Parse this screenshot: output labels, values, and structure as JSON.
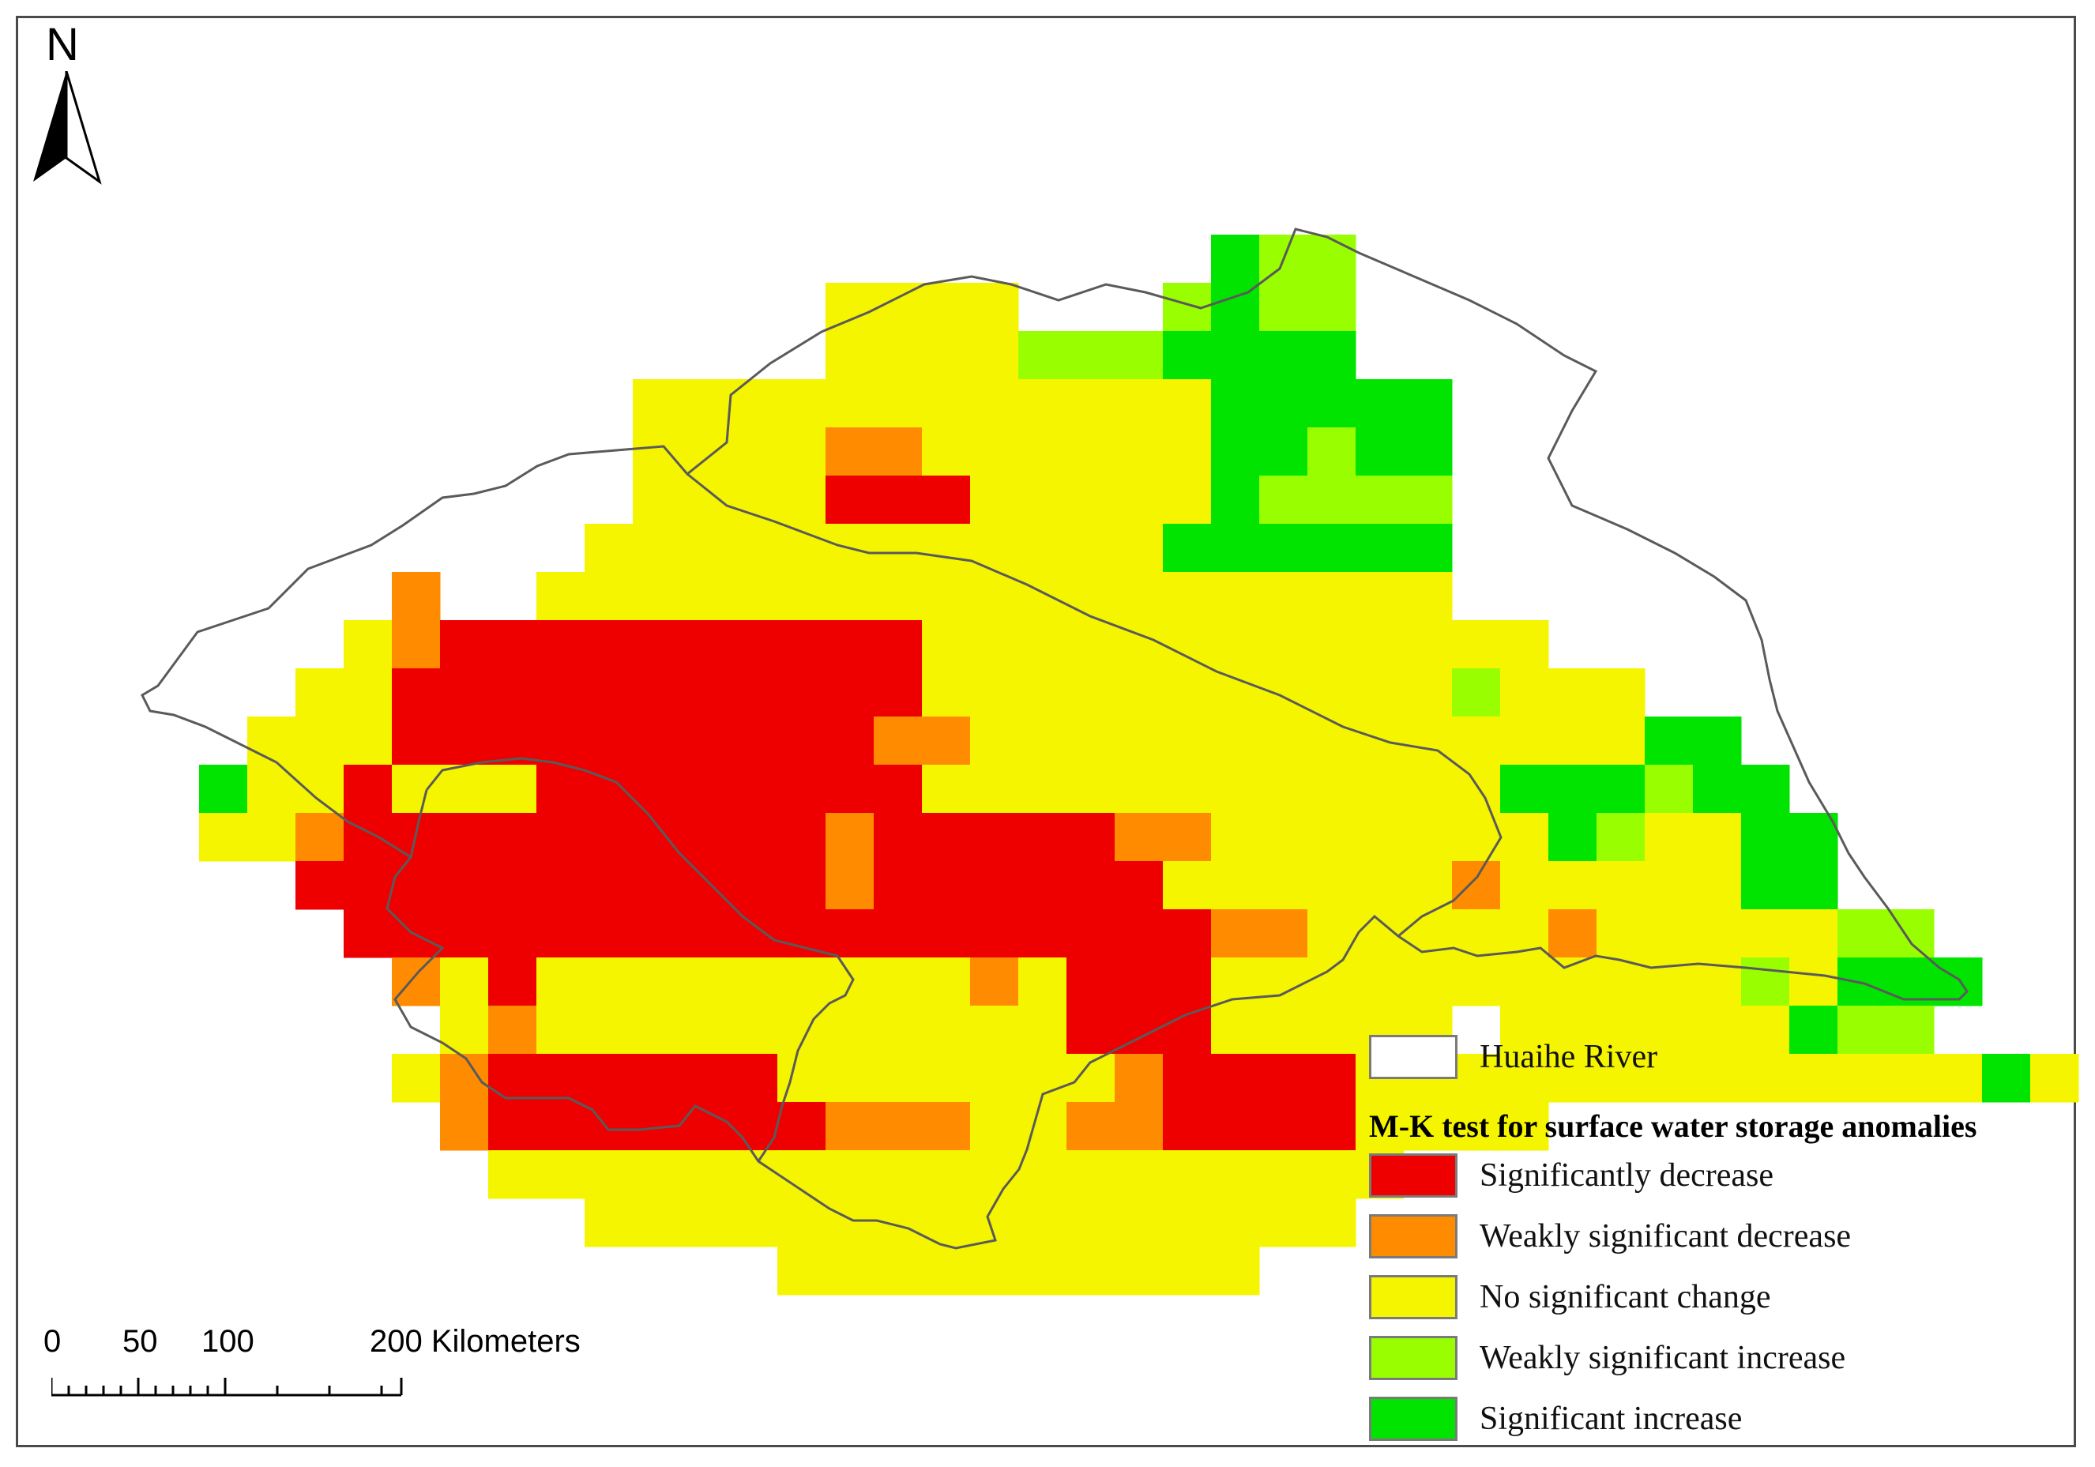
{
  "map": {
    "north_label": "N",
    "grid_cols": 38,
    "grid_rows": 23,
    "grid_origin_col_index_label": "",
    "classes": {
      "R": {
        "label": "Significantly decrease",
        "color": "#ee0000"
      },
      "O": {
        "label": "Weakly significant decrease",
        "color": "#ff8c00"
      },
      "Y": {
        "label": "No significant change",
        "color": "#f5f500"
      },
      "L": {
        "label": "Weakly significant increase",
        "color": "#99ff00"
      },
      "G": {
        "label": "Significant increase",
        "color": "#00e400"
      }
    },
    "cells": [
      "......................................",
      ".......................GLL............",
      "...............YYYY...LGLL............",
      "...............YYYYLLLGGGG............",
      "...........YYYYYYYYYYYYGGGGG..........",
      "...........YYYYOOYYYYYYGGLGG..........",
      "...........YYYYRRRYYYYYGLLLL..........",
      "..........YYYYYYYYYYYYGGGGGG..........",
      "......O..YYYYYYYYYYYYYYYYYYY..........",
      ".....YORRRRRRRRRRYYYYYYYYYYYYY........",
      "....YYRRRRRRRRRRRYYYYYYYYYYYLYYY......",
      "...YYYRRRRRRRRRROOYYYYYYYYYYYYYYGG....",
      "..GYYRYYYRRRRRRRRYYYYYYYYYYYYGGGLGG....",
      "..YYORRRRRRRRRRORRRRROOYYYYYYYGLYYGG....",
      "....RRRRRRRRRRRORRRRRRYYYYYYOYYYYYGG....",
      ".....RRRRRRRRRRRRRRRRRROOYYYYYOYYYYYLL...",
      "......OYRYYYYYYYYYOYRRRYYYYYYYYYYYLYGGG...",
      ".......YOYYYYYYYYYYYRRRYYYYY.YYYYYYGLL....",
      "......YORRRRRRYYYYYYYORRRRYYYYYYYYYYYYYGY",
      ".......ORRRRRRROOOYYOORRRRYYYY.............",
      "........YYYYYYYYYYYYYYYYYYY...............",
      "..........YYYYYYYYYYYYYYYY................",
      "..............YYYYYYYYYY.................."
    ]
  },
  "legend": {
    "boundary_label": "Huaihe River",
    "title": "M-K test for surface water storage anomalies",
    "items": [
      {
        "label": "Significantly decrease",
        "color": "#ee0000"
      },
      {
        "label": "Weakly significant decrease",
        "color": "#ff8c00"
      },
      {
        "label": "No significant change",
        "color": "#f5f500"
      },
      {
        "label": "Weakly significant increase",
        "color": "#99ff00"
      },
      {
        "label": "Significant increase",
        "color": "#00e400"
      }
    ]
  },
  "scale_bar": {
    "ticks": [
      "0",
      "50",
      "100",
      "200 Kilometers"
    ]
  }
}
